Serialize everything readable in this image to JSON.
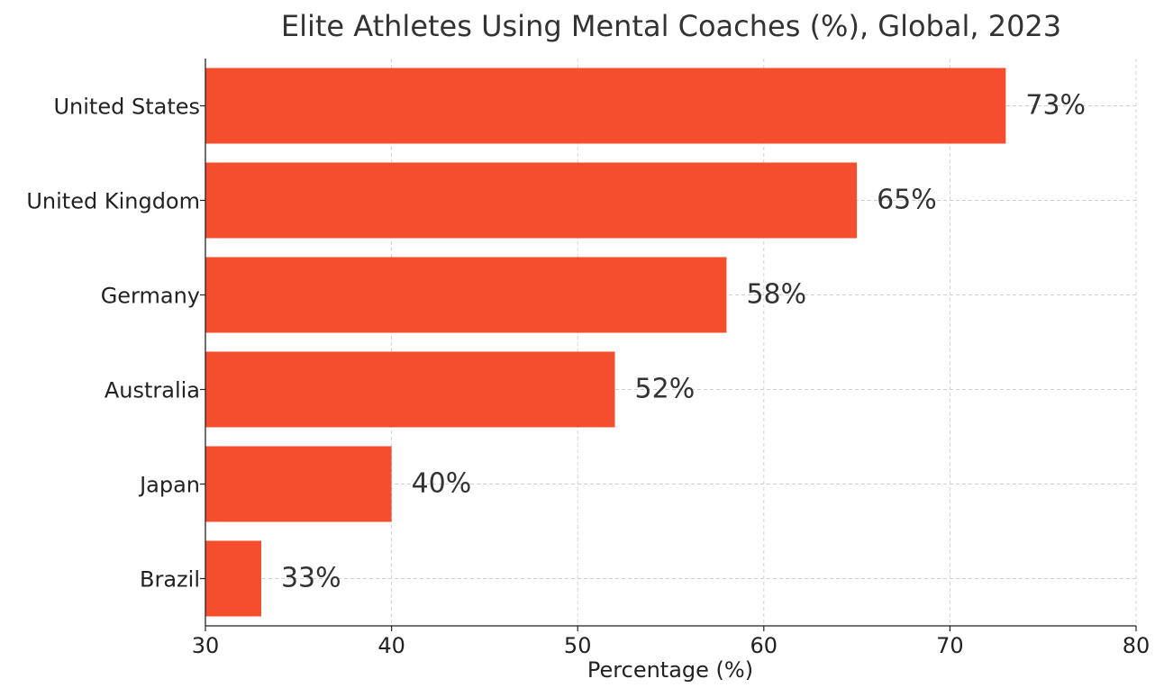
{
  "chart_data": {
    "type": "bar",
    "orientation": "horizontal",
    "title": "Elite Athletes Using Mental Coaches (%), Global, 2023",
    "xlabel": "Percentage (%)",
    "ylabel": "",
    "categories": [
      "United States",
      "United Kingdom",
      "Germany",
      "Australia",
      "Japan",
      "Brazil"
    ],
    "values": [
      73,
      65,
      58,
      52,
      40,
      33
    ],
    "value_labels": [
      "73%",
      "65%",
      "58%",
      "52%",
      "40%",
      "33%"
    ],
    "xlim": [
      30,
      80
    ],
    "xticks": [
      30,
      40,
      50,
      60,
      70,
      80
    ],
    "xtick_labels": [
      "30",
      "40",
      "50",
      "60",
      "70",
      "80"
    ],
    "grid": true,
    "legend": "none",
    "colors": {
      "bar": "#f44e2f",
      "text": "#333333",
      "grid": "#d0d0d0",
      "axis": "#222222"
    }
  }
}
